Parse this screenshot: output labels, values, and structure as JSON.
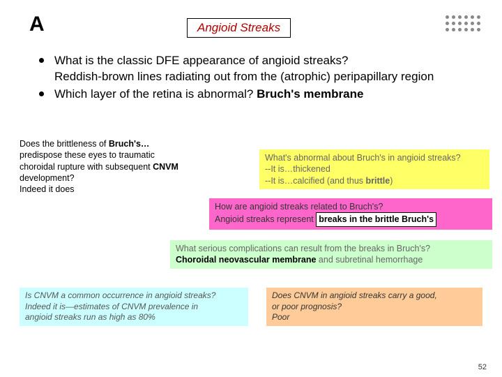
{
  "slide_letter": "A",
  "title": "Angioid Streaks",
  "title_color": "#b00000",
  "dot_color": "#888888",
  "bullets": {
    "b1_q": "What is the classic DFE appearance of angioid streaks?",
    "b1_a": "Reddish-brown lines radiating out from the (atrophic) peripapillary region",
    "b2_q": "Which layer of the retina is abnormal? ",
    "b2_a": "Bruch's membrane"
  },
  "brittle_box": {
    "l1a": "Does the brittleness of ",
    "l1b": "Bruch's…",
    "l2": "predispose these eyes to traumatic",
    "l3a": "choroidal rupture with subsequent ",
    "l3b": "CNVM",
    "l4": "development?",
    "l5": "Indeed it does"
  },
  "abnormal_box": {
    "q": "What's abnormal about Bruch's in angioid streaks?",
    "a1": "--It is…thickened",
    "a2a": "--It is…calcified (and thus ",
    "a2b": "brittle",
    "a2c": ")"
  },
  "related_box": {
    "q": "How are angioid streaks related to Bruch's?",
    "a_pre": "Angioid streaks represent ",
    "a_inset": "breaks in the brittle Bruch's"
  },
  "complications_box": {
    "q": "What serious complications can result from the breaks in Bruch's?",
    "a1": "Choroidal neovascular membrane",
    "a2": " and subretinal hemorrhage"
  },
  "common_box": {
    "q": "Is CNVM a common occurrence in angioid streaks?",
    "a1": "Indeed it is—estimates of CNVM prevalence in",
    "a2": "angioid streaks run as high as  80%"
  },
  "prognosis_box": {
    "q": "Does CNVM in angioid streaks carry a good,",
    "q2": "or poor prognosis?",
    "a": "Poor"
  },
  "page_number": "52",
  "colors": {
    "yellow": "#ffff66",
    "pink": "#ff66cc",
    "green": "#ccffcc",
    "cyan": "#ccffff",
    "peach": "#ffcc99"
  }
}
